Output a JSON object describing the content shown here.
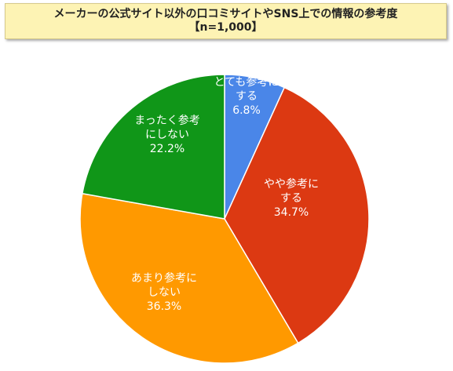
{
  "title": {
    "line1": "メーカーの公式サイト以外の口コミサイトやSNS上での情報の参考度",
    "line2": "【n=1,000】"
  },
  "chart_data": {
    "type": "pie",
    "start_angle_deg": 0,
    "direction": "clockwise",
    "slices": [
      {
        "label_lines": [
          "とても参考に",
          "する"
        ],
        "value": 6.8,
        "value_label": "6.8%",
        "color": "#4a86e8"
      },
      {
        "label_lines": [
          "やや参考に",
          "する"
        ],
        "value": 34.7,
        "value_label": "34.7%",
        "color": "#dc3912"
      },
      {
        "label_lines": [
          "あまり参考に",
          "しない"
        ],
        "value": 36.3,
        "value_label": "36.3%",
        "color": "#ff9900"
      },
      {
        "label_lines": [
          "まったく参考",
          "にしない"
        ],
        "value": 22.2,
        "value_label": "22.2%",
        "color": "#109618"
      }
    ]
  }
}
